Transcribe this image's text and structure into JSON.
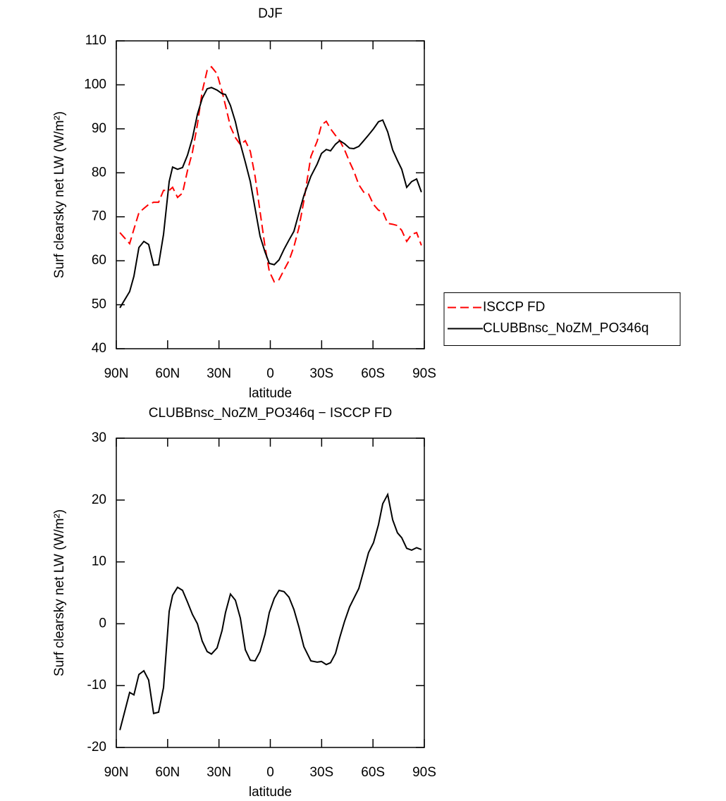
{
  "chart_data": [
    {
      "type": "line",
      "title": "DJF",
      "x_label": "latitude",
      "y_label": "Surf clearsky net LW (W/m²)",
      "x": [
        87.9,
        82.2,
        79.7,
        76.8,
        73.9,
        71.1,
        68.2,
        65.3,
        62.4,
        59.1,
        57.1,
        54.2,
        51.3,
        48.4,
        45.5,
        42.6,
        39.8,
        36.9,
        34.4,
        31.1,
        28.2,
        26.2,
        23.3,
        20.4,
        17.5,
        14.6,
        11.7,
        8.9,
        6.0,
        3.1,
        0.6,
        -2.3,
        -5.1,
        -8.0,
        -10.9,
        -13.8,
        -16.7,
        -19.6,
        -23.7,
        -27.4,
        -29.9,
        -32.7,
        -35.2,
        -38.1,
        -40.6,
        -43.4,
        -46.3,
        -48.8,
        -51.7,
        -54.6,
        -57.4,
        -60.3,
        -63.2,
        -65.7,
        -68.6,
        -71.5,
        -74.3,
        -76.8,
        -79.7,
        -82.6,
        -85.5,
        -88.3
      ],
      "series": [
        {
          "name": "ISCCP FD",
          "color": "#ff0000",
          "dash": "dashed",
          "values": [
            66.4,
            63.9,
            67.2,
            70.9,
            71.9,
            72.8,
            73.3,
            73.3,
            76,
            76,
            76.7,
            74.4,
            75.4,
            80.5,
            84.7,
            91,
            98.5,
            103.3,
            104.1,
            102.5,
            98.5,
            95.3,
            90.5,
            88,
            86.4,
            87.3,
            84.9,
            79.2,
            71.2,
            63.2,
            57.6,
            55.2,
            55.7,
            57.9,
            60,
            63.2,
            67.5,
            73.6,
            83.7,
            87.2,
            90.9,
            91.7,
            90,
            88.5,
            87.3,
            85.2,
            82.5,
            80.4,
            77.3,
            75.6,
            75.2,
            72.8,
            71.5,
            71.2,
            68.5,
            68.3,
            68,
            66.9,
            64.4,
            66,
            66.4,
            63.5
          ]
        },
        {
          "name": "CLUBBnsc_NoZM_PO346q",
          "color": "#000000",
          "dash": "solid",
          "values": [
            49.3,
            53,
            56.5,
            63,
            64.4,
            63.7,
            59,
            59.1,
            66,
            78,
            81.3,
            80.8,
            81.2,
            84,
            87.9,
            93.3,
            96.9,
            99.1,
            99.4,
            98.8,
            98,
            97.8,
            95.3,
            91.6,
            86.6,
            82.4,
            78,
            71.9,
            65.6,
            62,
            59.4,
            59.1,
            60.2,
            62.6,
            64.7,
            66.7,
            70.8,
            74.8,
            79.2,
            82,
            84.4,
            85.3,
            85,
            86.5,
            87.3,
            86.6,
            85.6,
            85.5,
            86,
            87.3,
            88.6,
            90,
            91.6,
            92,
            89.3,
            85.2,
            82.8,
            80.8,
            76.7,
            78,
            78.6,
            75.6
          ]
        }
      ],
      "xlim": [
        90,
        -90
      ],
      "xticks": [
        {
          "value": 90,
          "label": "90N"
        },
        {
          "value": 60,
          "label": "60N"
        },
        {
          "value": 30,
          "label": "30N"
        },
        0,
        {
          "value": -30,
          "label": "30S"
        },
        {
          "value": -60,
          "label": "60S"
        },
        {
          "value": -90,
          "label": "90S"
        }
      ],
      "ylim": [
        40,
        110
      ],
      "yticks": [
        40,
        50,
        60,
        70,
        80,
        90,
        100,
        110
      ],
      "legend": "outside-right"
    },
    {
      "type": "line",
      "title": "CLUBBnsc_NoZM_PO346q − ISCCP FD",
      "x_label": "latitude",
      "y_label": "Surf clearsky net LW (W/m²)",
      "x": [
        87.9,
        82.2,
        79.7,
        76.8,
        73.9,
        71.1,
        68.2,
        65.3,
        62.4,
        59.1,
        57.1,
        54.2,
        51.3,
        48.4,
        45.5,
        42.6,
        39.8,
        36.9,
        34.4,
        31.1,
        28.2,
        26.2,
        23.3,
        20.4,
        17.5,
        14.6,
        11.7,
        8.9,
        6.0,
        3.1,
        0.6,
        -2.3,
        -5.1,
        -8.0,
        -10.9,
        -13.8,
        -16.7,
        -19.6,
        -23.7,
        -27.4,
        -29.9,
        -32.7,
        -35.2,
        -38.1,
        -40.6,
        -43.4,
        -46.3,
        -48.8,
        -51.7,
        -54.6,
        -57.4,
        -60.3,
        -63.2,
        -65.7,
        -68.6,
        -71.5,
        -74.3,
        -76.8,
        -79.7,
        -82.6,
        -85.5,
        -88.3
      ],
      "series": [
        {
          "color": "#000000",
          "dash": "solid",
          "values": [
            -17.2,
            -11.1,
            -11.5,
            -8.2,
            -7.6,
            -9.1,
            -14.5,
            -14.3,
            -10.3,
            2,
            4.6,
            5.9,
            5.4,
            3.5,
            1.5,
            0,
            -2.8,
            -4.5,
            -4.9,
            -3.9,
            -1.1,
            1.8,
            4.8,
            3.8,
            0.9,
            -4.2,
            -5.9,
            -6,
            -4.5,
            -1.7,
            1.8,
            4.1,
            5.4,
            5.2,
            4.3,
            2.3,
            -0.5,
            -3.7,
            -6,
            -6.2,
            -6.1,
            -6.6,
            -6.3,
            -4.8,
            -2.2,
            0.4,
            2.7,
            4.1,
            5.7,
            8.6,
            11.5,
            13.1,
            16,
            19.4,
            20.9,
            16.8,
            14.7,
            13.9,
            12.2,
            11.9,
            12.3,
            12
          ]
        }
      ],
      "xlim": [
        90,
        -90
      ],
      "xticks": [
        {
          "value": 90,
          "label": "90N"
        },
        {
          "value": 60,
          "label": "60N"
        },
        {
          "value": 30,
          "label": "30N"
        },
        0,
        {
          "value": -30,
          "label": "30S"
        },
        {
          "value": -60,
          "label": "60S"
        },
        {
          "value": -90,
          "label": "90S"
        }
      ],
      "ylim": [
        -20,
        30
      ],
      "yticks": [
        -20,
        -10,
        0,
        10,
        20,
        30
      ]
    }
  ]
}
